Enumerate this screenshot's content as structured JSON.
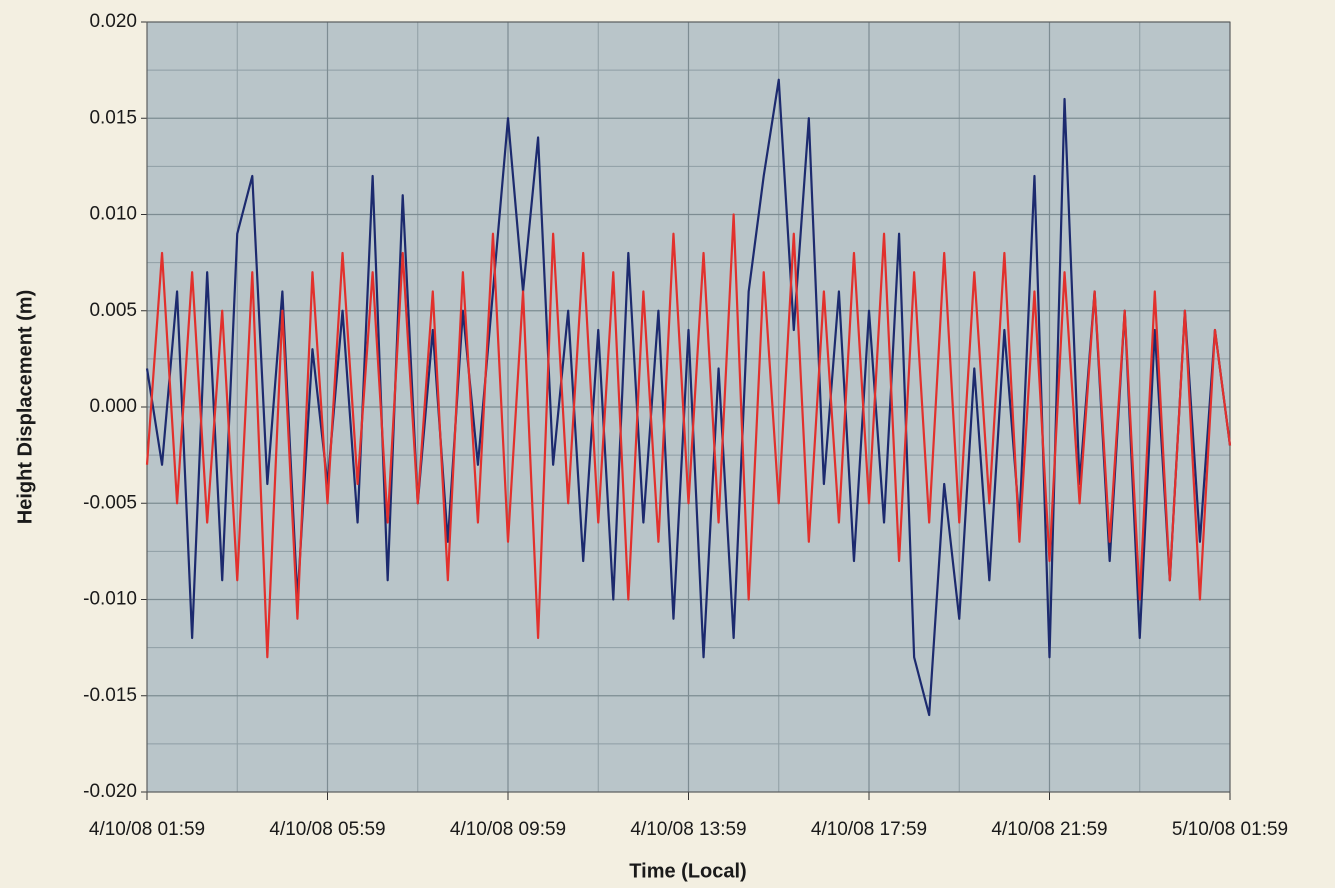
{
  "chart_data": {
    "type": "line",
    "x_label": "Time (Local)",
    "y_label": "Height Displacement (m)",
    "x": [
      "4/10/08 01:59",
      "4/10/08 02:19",
      "4/10/08 02:39",
      "4/10/08 02:59",
      "4/10/08 03:19",
      "4/10/08 03:39",
      "4/10/08 03:59",
      "4/10/08 04:19",
      "4/10/08 04:39",
      "4/10/08 04:59",
      "4/10/08 05:19",
      "4/10/08 05:39",
      "4/10/08 05:59",
      "4/10/08 06:19",
      "4/10/08 06:39",
      "4/10/08 06:59",
      "4/10/08 07:19",
      "4/10/08 07:39",
      "4/10/08 07:59",
      "4/10/08 08:19",
      "4/10/08 08:39",
      "4/10/08 08:59",
      "4/10/08 09:19",
      "4/10/08 09:39",
      "4/10/08 09:59",
      "4/10/08 10:19",
      "4/10/08 10:39",
      "4/10/08 10:59",
      "4/10/08 11:19",
      "4/10/08 11:39",
      "4/10/08 11:59",
      "4/10/08 12:19",
      "4/10/08 12:39",
      "4/10/08 12:59",
      "4/10/08 13:19",
      "4/10/08 13:39",
      "4/10/08 13:59",
      "4/10/08 14:19",
      "4/10/08 14:39",
      "4/10/08 14:59",
      "4/10/08 15:19",
      "4/10/08 15:39",
      "4/10/08 15:59",
      "4/10/08 16:19",
      "4/10/08 16:39",
      "4/10/08 16:59",
      "4/10/08 17:19",
      "4/10/08 17:39",
      "4/10/08 17:59",
      "4/10/08 18:19",
      "4/10/08 18:39",
      "4/10/08 18:59",
      "4/10/08 19:19",
      "4/10/08 19:39",
      "4/10/08 19:59",
      "4/10/08 20:19",
      "4/10/08 20:39",
      "4/10/08 20:59",
      "4/10/08 21:19",
      "4/10/08 21:39",
      "4/10/08 21:59",
      "4/10/08 22:19",
      "4/10/08 22:39",
      "4/10/08 22:59",
      "4/10/08 23:19",
      "4/10/08 23:39",
      "4/10/08 23:59",
      "5/10/08 00:19",
      "5/10/08 00:39",
      "5/10/08 00:59",
      "5/10/08 01:19",
      "5/10/08 01:39",
      "5/10/08 01:59"
    ],
    "series": [
      {
        "color": "#1c2a6e",
        "values": [
          0.002,
          -0.003,
          0.006,
          -0.012,
          0.007,
          -0.009,
          0.009,
          0.012,
          -0.004,
          0.006,
          -0.01,
          0.003,
          -0.004,
          0.005,
          -0.006,
          0.012,
          -0.009,
          0.011,
          -0.005,
          0.004,
          -0.007,
          0.005,
          -0.003,
          0.006,
          0.015,
          0.006,
          0.014,
          -0.003,
          0.005,
          -0.008,
          0.004,
          -0.01,
          0.008,
          -0.006,
          0.005,
          -0.011,
          0.004,
          -0.013,
          0.002,
          -0.012,
          0.006,
          0.012,
          0.017,
          0.004,
          0.015,
          -0.004,
          0.006,
          -0.008,
          0.005,
          -0.006,
          0.009,
          -0.013,
          -0.016,
          -0.004,
          -0.011,
          0.002,
          -0.009,
          0.004,
          -0.006,
          0.012,
          -0.013,
          0.016,
          -0.004,
          0.006,
          -0.008,
          0.005,
          -0.012,
          0.004,
          -0.009,
          0.005,
          -0.007,
          0.004,
          -0.002
        ]
      },
      {
        "color": "#e2302c",
        "values": [
          -0.003,
          0.008,
          -0.005,
          0.007,
          -0.006,
          0.005,
          -0.009,
          0.007,
          -0.013,
          0.005,
          -0.011,
          0.007,
          -0.005,
          0.008,
          -0.004,
          0.007,
          -0.006,
          0.008,
          -0.005,
          0.006,
          -0.009,
          0.007,
          -0.006,
          0.009,
          -0.007,
          0.006,
          -0.012,
          0.009,
          -0.005,
          0.008,
          -0.006,
          0.007,
          -0.01,
          0.006,
          -0.007,
          0.009,
          -0.005,
          0.008,
          -0.006,
          0.01,
          -0.01,
          0.007,
          -0.005,
          0.009,
          -0.007,
          0.006,
          -0.006,
          0.008,
          -0.005,
          0.009,
          -0.008,
          0.007,
          -0.006,
          0.008,
          -0.006,
          0.007,
          -0.005,
          0.008,
          -0.007,
          0.006,
          -0.008,
          0.007,
          -0.005,
          0.006,
          -0.007,
          0.005,
          -0.01,
          0.006,
          -0.009,
          0.005,
          -0.01,
          0.004,
          -0.002
        ]
      }
    ],
    "xlim": [
      "4/10/08 01:59",
      "5/10/08 01:59"
    ],
    "xticks": [
      "4/10/08 01:59",
      "4/10/08 05:59",
      "4/10/08 09:59",
      "4/10/08 13:59",
      "4/10/08 17:59",
      "4/10/08 21:59",
      "5/10/08 01:59"
    ],
    "xminorticks": [
      "4/10/08 03:59",
      "4/10/08 07:59",
      "4/10/08 11:59",
      "4/10/08 15:59",
      "4/10/08 19:59",
      "4/10/08 23:59"
    ],
    "ylim": [
      -0.02,
      0.02
    ],
    "yticks": [
      {
        "value": 0.02,
        "label": "0.020"
      },
      0.015,
      {
        "value": 0.01,
        "label": "0.010"
      },
      0.005,
      {
        "value": 0,
        "label": "0.000"
      },
      -0.005,
      {
        "value": -0.01,
        "label": "-0.010"
      },
      -0.015,
      {
        "value": -0.02,
        "label": "-0.020"
      }
    ],
    "yminorticks": [
      0.0175,
      0.0125,
      0.0075,
      0.0025,
      -0.0025,
      -0.0075,
      -0.0125,
      -0.0175
    ],
    "grid": true
  }
}
